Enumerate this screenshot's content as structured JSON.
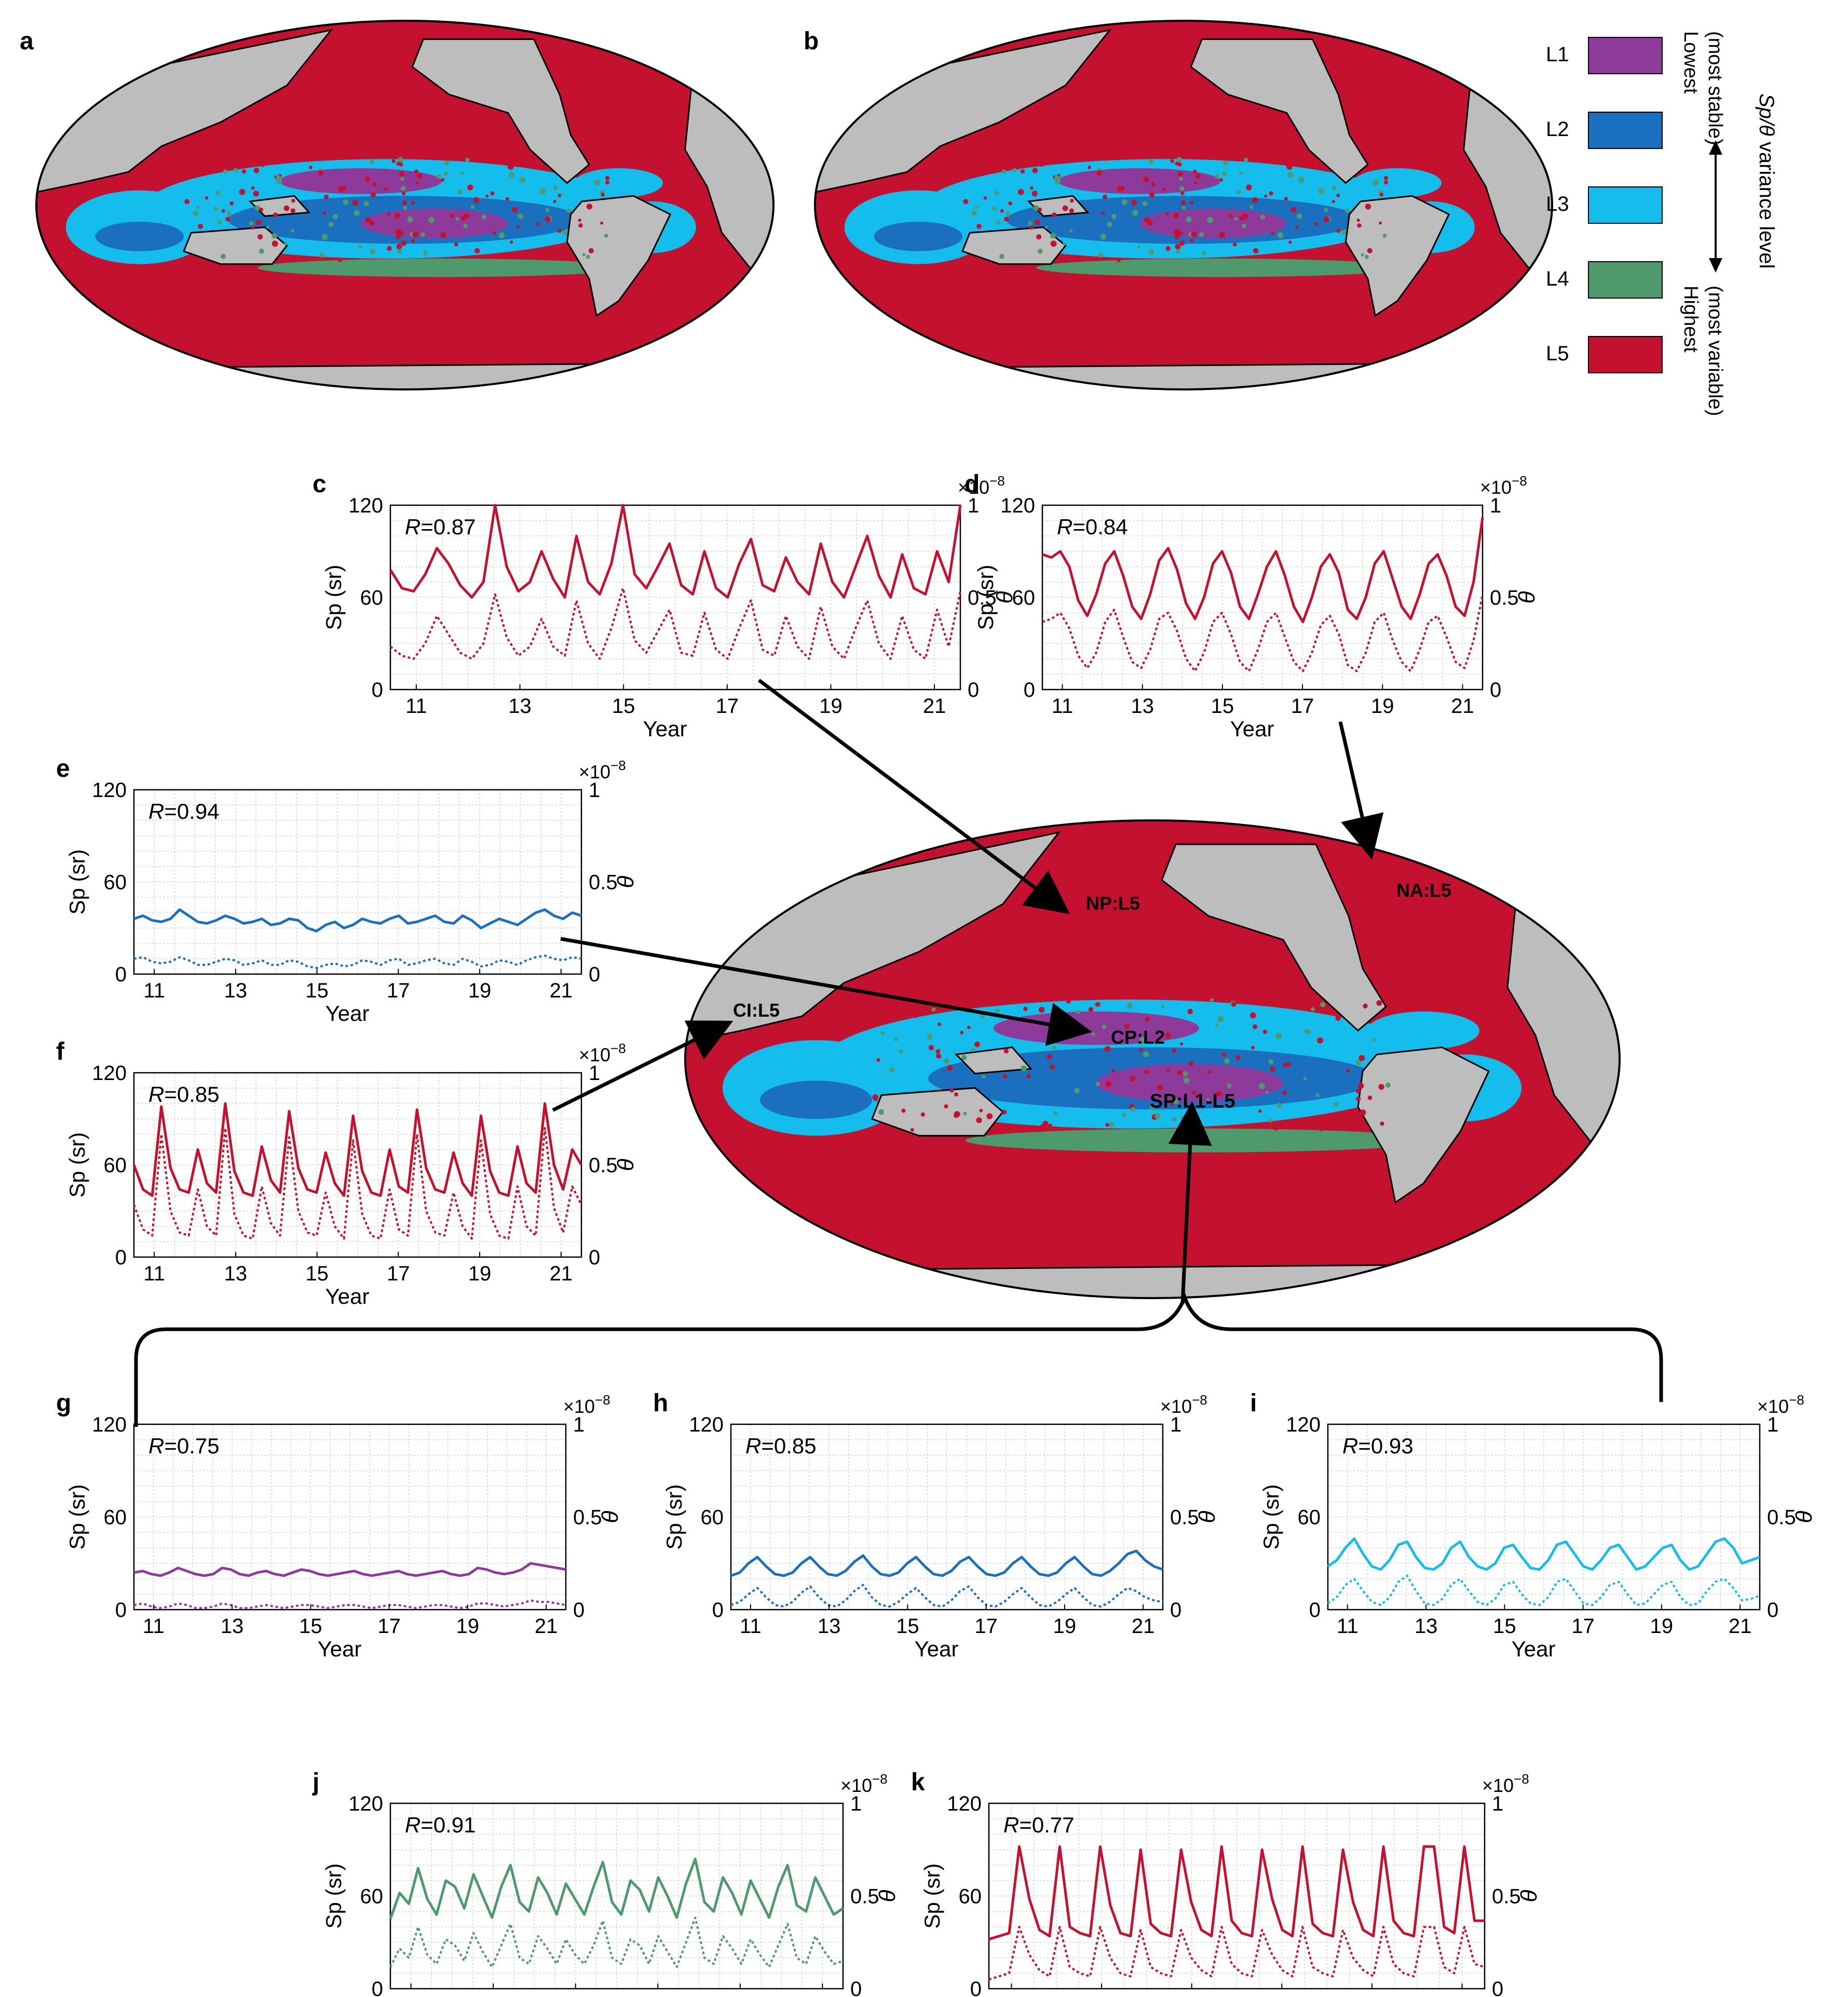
{
  "panel_letters": {
    "a": "a",
    "b": "b"
  },
  "legend": {
    "levels": [
      {
        "label": "L1",
        "color": "#8e3a9b"
      },
      {
        "label": "L2",
        "color": "#1b6fbf"
      },
      {
        "label": "L3",
        "color": "#14bdeb"
      },
      {
        "label": "L4",
        "color": "#4f9a6d"
      },
      {
        "label": "L5",
        "color": "#c3112f"
      }
    ],
    "top_word": "Lowest",
    "top_note": "(most stable)",
    "bottom_word": "Highest",
    "bottom_note": "(most variable)",
    "axis_title_italic": "Sp/θ",
    "axis_title_rest": " variance level"
  },
  "region_labels": [
    "NP:L5",
    "NA:L5",
    "CI:L5",
    "CP:L2",
    "SP:L1-L5"
  ],
  "colors": {
    "land": "#bdbdbd",
    "L1": "#8e3a9b",
    "L2": "#1b6fbf",
    "L3": "#14bdeb",
    "L4": "#4f9a6d",
    "L5": "#c3112f"
  },
  "axis_common": {
    "ylabel_left": "Sp (sr)",
    "ylabel_right": "θ",
    "xlabel": "Year",
    "x_ticks": [
      "11",
      "13",
      "15",
      "17",
      "19",
      "21"
    ],
    "y_ticks_left": [
      "0",
      "60",
      "120"
    ],
    "y_ticks_right": [
      "0",
      "0.5",
      "1"
    ],
    "exponent_base": "×10",
    "exponent_power": "−8"
  },
  "chart_data": [
    {
      "id": "c",
      "type": "line",
      "letter": "c",
      "annotation_italic": "R",
      "annotation_rest": "=0.87",
      "color": "#c3112f",
      "region": "NP",
      "xlim": [
        10.5,
        21.5
      ],
      "ylim": [
        0,
        120
      ],
      "ylim_right": [
        0,
        1
      ],
      "series": [
        {
          "values": [
            78,
            66,
            64,
            75,
            92,
            82,
            68,
            60,
            70,
            120,
            80,
            64,
            70,
            90,
            72,
            60,
            100,
            70,
            62,
            82,
            120,
            75,
            66,
            80,
            95,
            68,
            62,
            90,
            66,
            60,
            82,
            98,
            68,
            64,
            86,
            70,
            62,
            95,
            70,
            60,
            80,
            100,
            74,
            60,
            88,
            66,
            62,
            90,
            70,
            120
          ]
        },
        {
          "values": [
            28,
            22,
            20,
            30,
            48,
            36,
            24,
            20,
            30,
            62,
            34,
            22,
            28,
            46,
            28,
            22,
            58,
            30,
            20,
            40,
            66,
            32,
            24,
            38,
            52,
            24,
            22,
            50,
            26,
            20,
            40,
            58,
            26,
            22,
            48,
            28,
            20,
            54,
            28,
            20,
            40,
            58,
            30,
            20,
            48,
            26,
            20,
            52,
            28,
            64
          ]
        }
      ]
    },
    {
      "id": "d",
      "type": "line",
      "letter": "d",
      "annotation_italic": "R",
      "annotation_rest": "=0.84",
      "color": "#c3112f",
      "region": "NA",
      "xlim": [
        10.5,
        21.5
      ],
      "ylim": [
        0,
        120
      ],
      "ylim_right": [
        0,
        1
      ],
      "series": [
        {
          "values": [
            88,
            86,
            90,
            80,
            58,
            48,
            62,
            82,
            90,
            74,
            54,
            46,
            62,
            84,
            92,
            78,
            56,
            46,
            60,
            82,
            90,
            76,
            54,
            46,
            62,
            80,
            90,
            74,
            54,
            44,
            60,
            80,
            88,
            76,
            52,
            46,
            60,
            82,
            90,
            72,
            54,
            46,
            62,
            82,
            88,
            74,
            54,
            48,
            70,
            112
          ]
        },
        {
          "values": [
            44,
            46,
            50,
            40,
            22,
            14,
            24,
            44,
            52,
            34,
            18,
            14,
            26,
            46,
            50,
            38,
            20,
            12,
            24,
            44,
            50,
            36,
            18,
            12,
            26,
            44,
            50,
            34,
            18,
            12,
            24,
            42,
            48,
            36,
            16,
            12,
            24,
            44,
            50,
            32,
            18,
            12,
            26,
            44,
            48,
            34,
            18,
            14,
            32,
            62
          ]
        }
      ]
    },
    {
      "id": "e",
      "type": "line",
      "letter": "e",
      "annotation_italic": "R",
      "annotation_rest": "=0.94",
      "color": "#1b6fbf",
      "region": "CP",
      "xlim": [
        10.5,
        21.5
      ],
      "ylim": [
        0,
        120
      ],
      "ylim_right": [
        0,
        1
      ],
      "series": [
        {
          "values": [
            36,
            38,
            35,
            34,
            36,
            42,
            38,
            34,
            33,
            35,
            38,
            36,
            33,
            34,
            36,
            32,
            33,
            36,
            35,
            30,
            28,
            32,
            34,
            30,
            32,
            36,
            34,
            33,
            36,
            38,
            33,
            34,
            36,
            38,
            34,
            33,
            38,
            35,
            30,
            33,
            36,
            34,
            32,
            36,
            40,
            42,
            38,
            36,
            40,
            38
          ]
        },
        {
          "values": [
            10,
            11,
            8,
            7,
            8,
            11,
            9,
            6,
            6,
            8,
            10,
            9,
            6,
            7,
            9,
            6,
            6,
            9,
            8,
            5,
            4,
            6,
            7,
            5,
            6,
            9,
            8,
            6,
            9,
            10,
            6,
            7,
            9,
            10,
            7,
            6,
            10,
            8,
            5,
            6,
            9,
            8,
            6,
            9,
            11,
            12,
            10,
            9,
            11,
            10
          ]
        }
      ]
    },
    {
      "id": "f",
      "type": "line",
      "letter": "f",
      "annotation_italic": "R",
      "annotation_rest": "=0.85",
      "color": "#c3112f",
      "region": "CI",
      "xlim": [
        10.5,
        21.5
      ],
      "ylim": [
        0,
        120
      ],
      "ylim_right": [
        0,
        1
      ],
      "series": [
        {
          "values": [
            60,
            44,
            40,
            98,
            58,
            44,
            42,
            70,
            48,
            42,
            100,
            56,
            42,
            40,
            72,
            50,
            42,
            95,
            58,
            44,
            42,
            68,
            48,
            40,
            92,
            56,
            42,
            40,
            70,
            46,
            42,
            96,
            58,
            44,
            42,
            68,
            48,
            40,
            92,
            56,
            42,
            40,
            72,
            48,
            42,
            100,
            60,
            44,
            70,
            60
          ]
        },
        {
          "values": [
            34,
            18,
            14,
            80,
            30,
            16,
            14,
            44,
            20,
            14,
            84,
            28,
            14,
            12,
            46,
            22,
            14,
            78,
            30,
            16,
            14,
            42,
            20,
            12,
            76,
            28,
            14,
            12,
            44,
            18,
            14,
            80,
            30,
            16,
            14,
            42,
            20,
            12,
            76,
            28,
            14,
            12,
            46,
            20,
            14,
            84,
            32,
            16,
            46,
            34
          ]
        }
      ]
    },
    {
      "id": "g",
      "type": "line",
      "letter": "g",
      "annotation_italic": "R",
      "annotation_rest": "=0.75",
      "color": "#8e3a9b",
      "region": "SP-L1",
      "xlim": [
        10.5,
        21.5
      ],
      "ylim": [
        0,
        120
      ],
      "ylim_right": [
        0,
        1
      ],
      "series": [
        {
          "values": [
            24,
            25,
            23,
            22,
            24,
            27,
            25,
            23,
            22,
            23,
            27,
            26,
            23,
            22,
            24,
            25,
            23,
            22,
            24,
            26,
            25,
            23,
            22,
            23,
            24,
            25,
            23,
            22,
            23,
            24,
            25,
            23,
            22,
            23,
            24,
            25,
            23,
            22,
            23,
            27,
            26,
            24,
            23,
            24,
            26,
            30,
            29,
            28,
            27,
            26
          ]
        },
        {
          "values": [
            3,
            4,
            2,
            1,
            2,
            4,
            3,
            1,
            1,
            2,
            4,
            3,
            1,
            1,
            2,
            3,
            2,
            1,
            2,
            3,
            3,
            2,
            1,
            2,
            3,
            3,
            2,
            1,
            2,
            3,
            3,
            2,
            1,
            2,
            3,
            3,
            2,
            1,
            2,
            4,
            4,
            3,
            2,
            3,
            4,
            6,
            5,
            5,
            4,
            3
          ]
        }
      ]
    },
    {
      "id": "h",
      "type": "line",
      "letter": "h",
      "annotation_italic": "R",
      "annotation_rest": "=0.85",
      "color": "#1b6fbf",
      "region": "SP-L2",
      "xlim": [
        10.5,
        21.5
      ],
      "ylim": [
        0,
        120
      ],
      "ylim_right": [
        0,
        1
      ],
      "series": [
        {
          "values": [
            22,
            24,
            30,
            34,
            28,
            23,
            22,
            24,
            30,
            34,
            28,
            23,
            22,
            25,
            31,
            35,
            28,
            23,
            22,
            24,
            30,
            34,
            28,
            23,
            22,
            25,
            31,
            34,
            28,
            23,
            22,
            24,
            30,
            34,
            28,
            23,
            22,
            24,
            30,
            34,
            28,
            23,
            22,
            25,
            30,
            36,
            38,
            32,
            28,
            26
          ]
        },
        {
          "values": [
            3,
            5,
            10,
            14,
            8,
            3,
            2,
            5,
            11,
            15,
            8,
            3,
            2,
            6,
            12,
            16,
            8,
            3,
            2,
            5,
            10,
            14,
            8,
            3,
            2,
            6,
            12,
            15,
            8,
            3,
            2,
            5,
            10,
            14,
            8,
            3,
            2,
            5,
            10,
            14,
            8,
            3,
            2,
            5,
            10,
            14,
            12,
            8,
            6,
            5
          ]
        }
      ]
    },
    {
      "id": "i",
      "type": "line",
      "letter": "i",
      "annotation_italic": "R",
      "annotation_rest": "=0.93",
      "color": "#14bdeb",
      "region": "SP-L3",
      "xlim": [
        10.5,
        21.5
      ],
      "ylim": [
        0,
        120
      ],
      "ylim_right": [
        0,
        1
      ],
      "series": [
        {
          "values": [
            28,
            32,
            40,
            46,
            36,
            28,
            26,
            32,
            42,
            44,
            34,
            27,
            26,
            30,
            40,
            44,
            34,
            28,
            26,
            30,
            40,
            42,
            34,
            27,
            26,
            32,
            42,
            44,
            36,
            28,
            26,
            32,
            40,
            42,
            34,
            26,
            28,
            34,
            40,
            42,
            32,
            26,
            28,
            36,
            44,
            46,
            40,
            30,
            32,
            34
          ]
        },
        {
          "values": [
            4,
            8,
            16,
            20,
            12,
            5,
            3,
            8,
            18,
            22,
            12,
            4,
            3,
            7,
            16,
            20,
            12,
            5,
            3,
            7,
            16,
            18,
            10,
            4,
            3,
            8,
            18,
            20,
            12,
            4,
            3,
            8,
            16,
            18,
            10,
            3,
            4,
            10,
            16,
            18,
            8,
            3,
            4,
            12,
            18,
            20,
            14,
            6,
            7,
            9
          ]
        }
      ]
    },
    {
      "id": "j",
      "type": "line",
      "letter": "j",
      "annotation_italic": "R",
      "annotation_rest": "=0.91",
      "color": "#4f9a6d",
      "region": "SP-L4",
      "xlim": [
        10.5,
        21.5
      ],
      "ylim": [
        0,
        120
      ],
      "ylim_right": [
        0,
        1
      ],
      "series": [
        {
          "values": [
            45,
            62,
            55,
            78,
            58,
            48,
            70,
            66,
            52,
            74,
            60,
            46,
            66,
            80,
            56,
            50,
            72,
            62,
            48,
            68,
            58,
            48,
            66,
            82,
            56,
            48,
            70,
            64,
            50,
            72,
            60,
            46,
            68,
            84,
            56,
            50,
            72,
            62,
            48,
            70,
            58,
            46,
            66,
            80,
            54,
            50,
            72,
            60,
            48,
            52
          ]
        },
        {
          "values": [
            14,
            26,
            20,
            40,
            22,
            16,
            32,
            28,
            18,
            36,
            24,
            14,
            28,
            42,
            20,
            16,
            34,
            26,
            16,
            32,
            22,
            16,
            28,
            44,
            20,
            16,
            32,
            28,
            16,
            34,
            24,
            14,
            30,
            46,
            20,
            16,
            34,
            26,
            16,
            32,
            22,
            14,
            28,
            42,
            20,
            16,
            34,
            24,
            16,
            18
          ]
        }
      ]
    },
    {
      "id": "k",
      "type": "line",
      "letter": "k",
      "annotation_italic": "R",
      "annotation_rest": "=0.77",
      "color": "#c3112f",
      "region": "SP-L5",
      "xlim": [
        10.5,
        21.5
      ],
      "ylim": [
        0,
        120
      ],
      "ylim_right": [
        0,
        1
      ],
      "series": [
        {
          "values": [
            32,
            34,
            36,
            92,
            58,
            38,
            34,
            92,
            40,
            36,
            34,
            92,
            54,
            36,
            34,
            90,
            42,
            36,
            34,
            90,
            56,
            38,
            34,
            92,
            44,
            36,
            34,
            90,
            58,
            38,
            34,
            92,
            42,
            36,
            34,
            90,
            56,
            38,
            34,
            92,
            44,
            36,
            34,
            92,
            92,
            40,
            36,
            92,
            44,
            44
          ]
        },
        {
          "values": [
            6,
            8,
            10,
            40,
            22,
            12,
            8,
            40,
            14,
            10,
            8,
            40,
            20,
            10,
            8,
            38,
            14,
            10,
            8,
            38,
            20,
            12,
            8,
            40,
            16,
            10,
            8,
            38,
            22,
            12,
            8,
            40,
            14,
            10,
            8,
            38,
            20,
            12,
            8,
            40,
            16,
            10,
            8,
            40,
            40,
            14,
            10,
            40,
            16,
            14
          ]
        }
      ]
    }
  ]
}
